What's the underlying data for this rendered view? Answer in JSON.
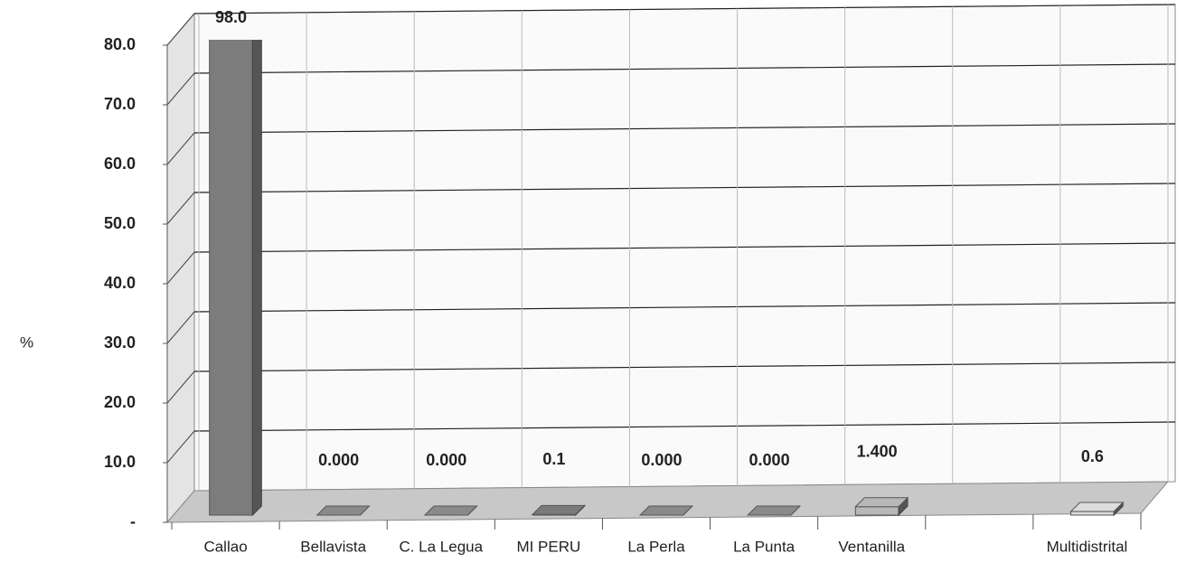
{
  "chart_data": {
    "type": "bar3d",
    "categories": [
      "Callao",
      "Bellavista",
      "C. La Legua",
      "MI PERU",
      "La Perla",
      "La Punta",
      "Ventanilla",
      null,
      "Multidistrital"
    ],
    "values": [
      98.0,
      0,
      0,
      0.1,
      0,
      0,
      1.4,
      null,
      0.6
    ],
    "value_labels": [
      "98.0",
      "0.000",
      "0.000",
      "0.1",
      "0.000",
      "0.000",
      "1.400",
      null,
      "0.6"
    ],
    "colors": [
      "#7c7c7c",
      "#8a8a8a",
      "#8a8a8a",
      "#7a7a7a",
      "#8a8a8a",
      "#8a8a8a",
      "#b8b8b8",
      "#cccccc",
      "#dcdcdc"
    ],
    "ylabel": "%",
    "ylim": [
      0,
      80
    ],
    "yticks": [
      {
        "value": 0,
        "label": "-"
      },
      {
        "value": 10,
        "label": "10.0"
      },
      {
        "value": 20,
        "label": "20.0"
      },
      {
        "value": 30,
        "label": "30.0"
      },
      {
        "value": 40,
        "label": "40.0"
      },
      {
        "value": 50,
        "label": "50.0"
      },
      {
        "value": 60,
        "label": "60.0"
      },
      {
        "value": 70,
        "label": "70.0"
      },
      {
        "value": 80,
        "label": "80.0"
      }
    ],
    "grid": true
  }
}
